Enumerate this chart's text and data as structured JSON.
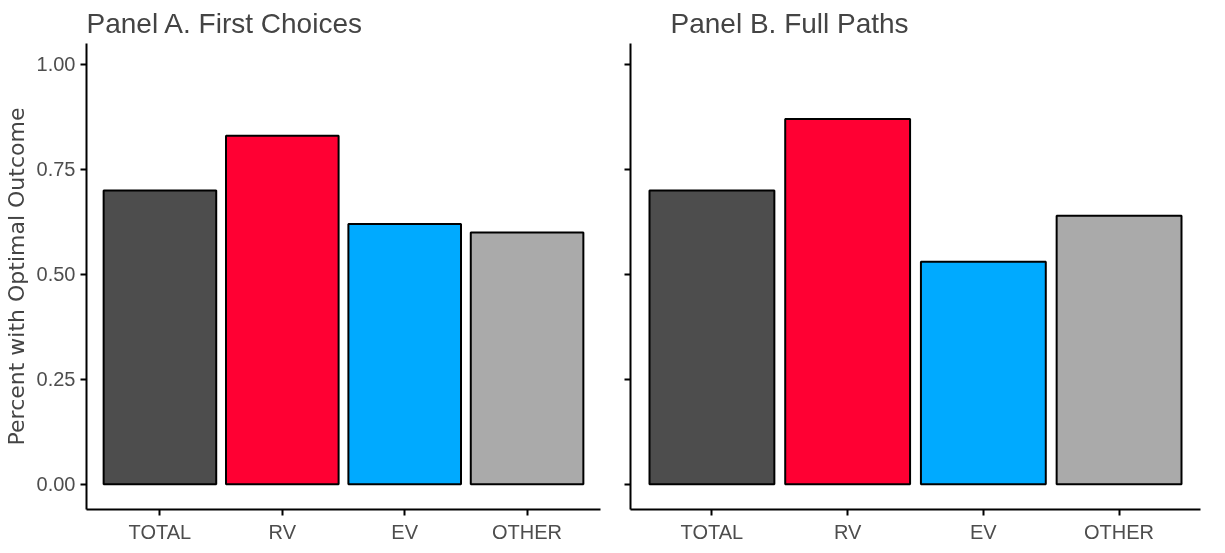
{
  "chart_data": [
    {
      "type": "bar",
      "title": "Panel A. First Choices",
      "ylabel": "Percent with Optimal Outcome",
      "categories": [
        "TOTAL",
        "RV",
        "EV",
        "OTHER"
      ],
      "values": [
        0.7,
        0.83,
        0.62,
        0.6
      ],
      "colors": [
        "#4d4d4d",
        "#ff0033",
        "#00aaff",
        "#aaaaaa"
      ],
      "ylim": [
        -0.06,
        1.05
      ],
      "yticks": [
        {
          "value": 0,
          "label": "0.00"
        },
        {
          "value": 0.25,
          "label": "0.25"
        },
        {
          "value": 0.5,
          "label": "0.50"
        },
        {
          "value": 0.75,
          "label": "0.75"
        },
        {
          "value": 1,
          "label": "1.00"
        }
      ],
      "grid": false
    },
    {
      "type": "bar",
      "title": "Panel B. Full Paths",
      "categories": [
        "TOTAL",
        "RV",
        "EV",
        "OTHER"
      ],
      "values": [
        0.7,
        0.87,
        0.53,
        0.64
      ],
      "colors": [
        "#4d4d4d",
        "#ff0033",
        "#00aaff",
        "#aaaaaa"
      ],
      "ylim": [
        -0.06,
        1.05
      ],
      "yticks": [
        {
          "value": 0,
          "label": null
        },
        {
          "value": 0.25,
          "label": null
        },
        {
          "value": 0.5,
          "label": null
        },
        {
          "value": 0.75,
          "label": null
        },
        {
          "value": 1,
          "label": null
        }
      ],
      "grid": false,
      "tick_labels": "x"
    }
  ]
}
